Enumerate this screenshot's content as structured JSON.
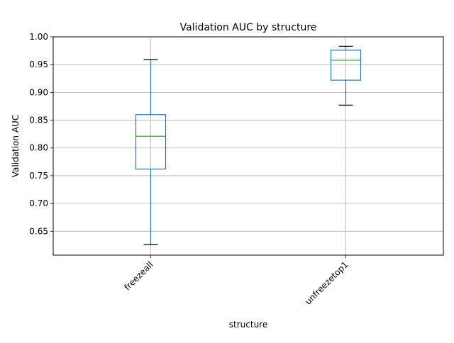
{
  "chart_data": {
    "type": "box",
    "title": "Validation AUC by structure",
    "xlabel": "structure",
    "ylabel": "Validation AUC",
    "ylim": [
      0.607,
      1.0
    ],
    "grid": true,
    "yticks": [
      "0.65",
      "0.70",
      "0.75",
      "0.80",
      "0.85",
      "0.90",
      "0.95",
      "1.00"
    ],
    "categories": [
      "freezeall",
      "unfreezetop1"
    ],
    "boxes": [
      {
        "category": "freezeall",
        "whisker_low": 0.626,
        "q1": 0.762,
        "median": 0.821,
        "q3": 0.86,
        "whisker_high": 0.959
      },
      {
        "category": "unfreezetop1",
        "whisker_low": 0.877,
        "q1": 0.922,
        "median": 0.958,
        "q3": 0.976,
        "whisker_high": 0.983
      }
    ],
    "colors": {
      "box": "#1f77b4",
      "median": "#2ca02c",
      "cap": "#000000",
      "grid": "#b0b0b0"
    }
  }
}
